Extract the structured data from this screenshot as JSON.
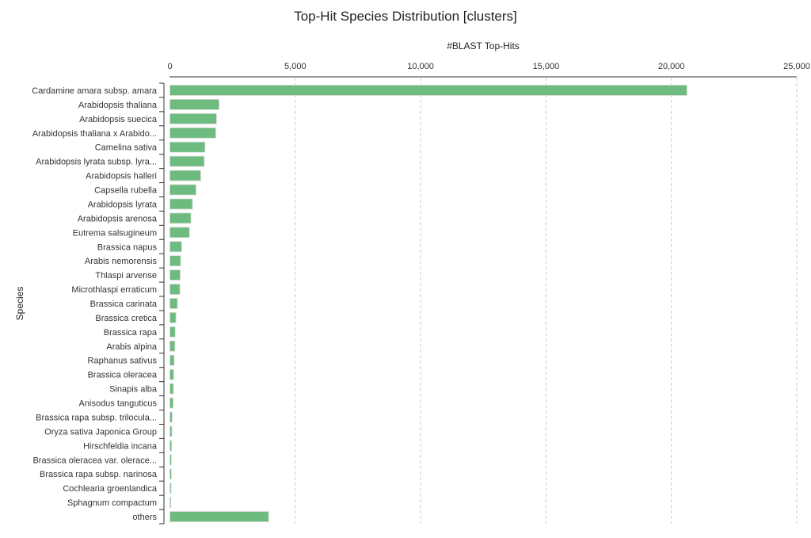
{
  "chart_data": {
    "type": "bar",
    "orientation": "horizontal",
    "title": "Top-Hit Species Distribution [clusters]",
    "xlabel": "#BLAST Top-Hits",
    "ylabel": "Species",
    "xlim": [
      0,
      25000
    ],
    "xticks": [
      0,
      5000,
      10000,
      15000,
      20000,
      25000
    ],
    "xtick_labels": [
      "0",
      "5,000",
      "10,000",
      "15,000",
      "20,000",
      "25,000"
    ],
    "grid": true,
    "color": "#6dbb7e",
    "categories": [
      "Cardamine amara subsp. amara",
      "Arabidopsis thaliana",
      "Arabidopsis suecica",
      "Arabidopsis thaliana x Arabido...",
      "Camelina sativa",
      "Arabidopsis lyrata subsp. lyra...",
      "Arabidopsis halleri",
      "Capsella rubella",
      "Arabidopsis lyrata",
      "Arabidopsis arenosa",
      "Eutrema salsugineum",
      "Brassica napus",
      "Arabis nemorensis",
      "Thlaspi arvense",
      "Microthlaspi erraticum",
      "Brassica carinata",
      "Brassica cretica",
      "Brassica rapa",
      "Arabis alpina",
      "Raphanus sativus",
      "Brassica oleracea",
      "Sinapis alba",
      "Anisodus tanguticus",
      "Brassica rapa subsp. trilocula...",
      "Oryza sativa Japonica Group",
      "Hirschfeldia incana",
      "Brassica oleracea var. olerace...",
      "Brassica rapa subsp. narinosa",
      "Cochlearia groenlandica",
      "Sphagnum compactum",
      "others"
    ],
    "values": [
      20620,
      1960,
      1860,
      1830,
      1400,
      1370,
      1230,
      1040,
      900,
      840,
      780,
      470,
      430,
      410,
      400,
      300,
      240,
      210,
      200,
      170,
      150,
      140,
      130,
      90,
      80,
      70,
      60,
      60,
      50,
      40,
      3940
    ]
  }
}
